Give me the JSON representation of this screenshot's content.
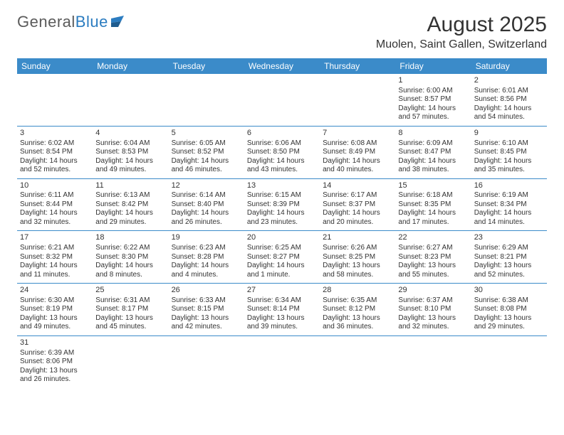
{
  "logo": {
    "text1": "General",
    "text2": "Blue"
  },
  "title": "August 2025",
  "location": "Muolen, Saint Gallen, Switzerland",
  "weekdays": [
    "Sunday",
    "Monday",
    "Tuesday",
    "Wednesday",
    "Thursday",
    "Friday",
    "Saturday"
  ],
  "colors": {
    "header_bg": "#3b8bc9",
    "header_text": "#ffffff",
    "row_border": "#3b8bc9",
    "text": "#333333",
    "logo_gray": "#5b5b5b",
    "logo_blue": "#2b7cc0"
  },
  "weeks": [
    [
      null,
      null,
      null,
      null,
      null,
      {
        "n": "1",
        "sr": "Sunrise: 6:00 AM",
        "ss": "Sunset: 8:57 PM",
        "dl1": "Daylight: 14 hours",
        "dl2": "and 57 minutes."
      },
      {
        "n": "2",
        "sr": "Sunrise: 6:01 AM",
        "ss": "Sunset: 8:56 PM",
        "dl1": "Daylight: 14 hours",
        "dl2": "and 54 minutes."
      }
    ],
    [
      {
        "n": "3",
        "sr": "Sunrise: 6:02 AM",
        "ss": "Sunset: 8:54 PM",
        "dl1": "Daylight: 14 hours",
        "dl2": "and 52 minutes."
      },
      {
        "n": "4",
        "sr": "Sunrise: 6:04 AM",
        "ss": "Sunset: 8:53 PM",
        "dl1": "Daylight: 14 hours",
        "dl2": "and 49 minutes."
      },
      {
        "n": "5",
        "sr": "Sunrise: 6:05 AM",
        "ss": "Sunset: 8:52 PM",
        "dl1": "Daylight: 14 hours",
        "dl2": "and 46 minutes."
      },
      {
        "n": "6",
        "sr": "Sunrise: 6:06 AM",
        "ss": "Sunset: 8:50 PM",
        "dl1": "Daylight: 14 hours",
        "dl2": "and 43 minutes."
      },
      {
        "n": "7",
        "sr": "Sunrise: 6:08 AM",
        "ss": "Sunset: 8:49 PM",
        "dl1": "Daylight: 14 hours",
        "dl2": "and 40 minutes."
      },
      {
        "n": "8",
        "sr": "Sunrise: 6:09 AM",
        "ss": "Sunset: 8:47 PM",
        "dl1": "Daylight: 14 hours",
        "dl2": "and 38 minutes."
      },
      {
        "n": "9",
        "sr": "Sunrise: 6:10 AM",
        "ss": "Sunset: 8:45 PM",
        "dl1": "Daylight: 14 hours",
        "dl2": "and 35 minutes."
      }
    ],
    [
      {
        "n": "10",
        "sr": "Sunrise: 6:11 AM",
        "ss": "Sunset: 8:44 PM",
        "dl1": "Daylight: 14 hours",
        "dl2": "and 32 minutes."
      },
      {
        "n": "11",
        "sr": "Sunrise: 6:13 AM",
        "ss": "Sunset: 8:42 PM",
        "dl1": "Daylight: 14 hours",
        "dl2": "and 29 minutes."
      },
      {
        "n": "12",
        "sr": "Sunrise: 6:14 AM",
        "ss": "Sunset: 8:40 PM",
        "dl1": "Daylight: 14 hours",
        "dl2": "and 26 minutes."
      },
      {
        "n": "13",
        "sr": "Sunrise: 6:15 AM",
        "ss": "Sunset: 8:39 PM",
        "dl1": "Daylight: 14 hours",
        "dl2": "and 23 minutes."
      },
      {
        "n": "14",
        "sr": "Sunrise: 6:17 AM",
        "ss": "Sunset: 8:37 PM",
        "dl1": "Daylight: 14 hours",
        "dl2": "and 20 minutes."
      },
      {
        "n": "15",
        "sr": "Sunrise: 6:18 AM",
        "ss": "Sunset: 8:35 PM",
        "dl1": "Daylight: 14 hours",
        "dl2": "and 17 minutes."
      },
      {
        "n": "16",
        "sr": "Sunrise: 6:19 AM",
        "ss": "Sunset: 8:34 PM",
        "dl1": "Daylight: 14 hours",
        "dl2": "and 14 minutes."
      }
    ],
    [
      {
        "n": "17",
        "sr": "Sunrise: 6:21 AM",
        "ss": "Sunset: 8:32 PM",
        "dl1": "Daylight: 14 hours",
        "dl2": "and 11 minutes."
      },
      {
        "n": "18",
        "sr": "Sunrise: 6:22 AM",
        "ss": "Sunset: 8:30 PM",
        "dl1": "Daylight: 14 hours",
        "dl2": "and 8 minutes."
      },
      {
        "n": "19",
        "sr": "Sunrise: 6:23 AM",
        "ss": "Sunset: 8:28 PM",
        "dl1": "Daylight: 14 hours",
        "dl2": "and 4 minutes."
      },
      {
        "n": "20",
        "sr": "Sunrise: 6:25 AM",
        "ss": "Sunset: 8:27 PM",
        "dl1": "Daylight: 14 hours",
        "dl2": "and 1 minute."
      },
      {
        "n": "21",
        "sr": "Sunrise: 6:26 AM",
        "ss": "Sunset: 8:25 PM",
        "dl1": "Daylight: 13 hours",
        "dl2": "and 58 minutes."
      },
      {
        "n": "22",
        "sr": "Sunrise: 6:27 AM",
        "ss": "Sunset: 8:23 PM",
        "dl1": "Daylight: 13 hours",
        "dl2": "and 55 minutes."
      },
      {
        "n": "23",
        "sr": "Sunrise: 6:29 AM",
        "ss": "Sunset: 8:21 PM",
        "dl1": "Daylight: 13 hours",
        "dl2": "and 52 minutes."
      }
    ],
    [
      {
        "n": "24",
        "sr": "Sunrise: 6:30 AM",
        "ss": "Sunset: 8:19 PM",
        "dl1": "Daylight: 13 hours",
        "dl2": "and 49 minutes."
      },
      {
        "n": "25",
        "sr": "Sunrise: 6:31 AM",
        "ss": "Sunset: 8:17 PM",
        "dl1": "Daylight: 13 hours",
        "dl2": "and 45 minutes."
      },
      {
        "n": "26",
        "sr": "Sunrise: 6:33 AM",
        "ss": "Sunset: 8:15 PM",
        "dl1": "Daylight: 13 hours",
        "dl2": "and 42 minutes."
      },
      {
        "n": "27",
        "sr": "Sunrise: 6:34 AM",
        "ss": "Sunset: 8:14 PM",
        "dl1": "Daylight: 13 hours",
        "dl2": "and 39 minutes."
      },
      {
        "n": "28",
        "sr": "Sunrise: 6:35 AM",
        "ss": "Sunset: 8:12 PM",
        "dl1": "Daylight: 13 hours",
        "dl2": "and 36 minutes."
      },
      {
        "n": "29",
        "sr": "Sunrise: 6:37 AM",
        "ss": "Sunset: 8:10 PM",
        "dl1": "Daylight: 13 hours",
        "dl2": "and 32 minutes."
      },
      {
        "n": "30",
        "sr": "Sunrise: 6:38 AM",
        "ss": "Sunset: 8:08 PM",
        "dl1": "Daylight: 13 hours",
        "dl2": "and 29 minutes."
      }
    ],
    [
      {
        "n": "31",
        "sr": "Sunrise: 6:39 AM",
        "ss": "Sunset: 8:06 PM",
        "dl1": "Daylight: 13 hours",
        "dl2": "and 26 minutes."
      },
      null,
      null,
      null,
      null,
      null,
      null
    ]
  ]
}
